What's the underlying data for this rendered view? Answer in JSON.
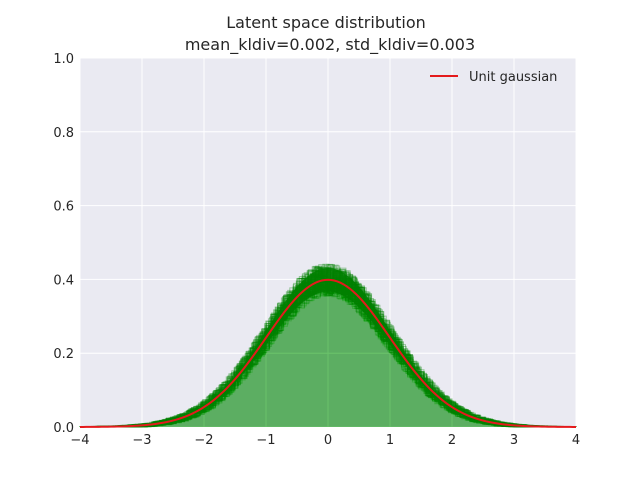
{
  "chart_data": {
    "type": "line",
    "title": "Latent space distribution",
    "subtitle": "mean_kldiv=0.002, std_kldiv=0.003",
    "xlabel": "",
    "ylabel": "",
    "xlim": [
      -4,
      4
    ],
    "ylim": [
      0,
      1.0
    ],
    "x_ticks": [
      "−4",
      "−3",
      "−2",
      "−1",
      "0",
      "1",
      "2",
      "3",
      "4"
    ],
    "y_ticks": [
      "0.0",
      "0.2",
      "0.4",
      "0.6",
      "0.8",
      "1.0"
    ],
    "grid": true,
    "legend_position": "top-right",
    "series": [
      {
        "name": "Unit gaussian",
        "color": "#e41a1c",
        "x": [
          -4.0,
          -3.5,
          -3.0,
          -2.5,
          -2.0,
          -1.5,
          -1.0,
          -0.5,
          0.0,
          0.5,
          1.0,
          1.5,
          2.0,
          2.5,
          3.0,
          3.5,
          4.0
        ],
        "y": [
          0.0001,
          0.0009,
          0.0044,
          0.0175,
          0.054,
          0.1295,
          0.242,
          0.352,
          0.399,
          0.352,
          0.242,
          0.1295,
          0.054,
          0.0175,
          0.0044,
          0.0009,
          0.0001
        ]
      }
    ],
    "histograms": {
      "description_color": "#008000",
      "peak_range": [
        0.33,
        0.49
      ]
    }
  }
}
